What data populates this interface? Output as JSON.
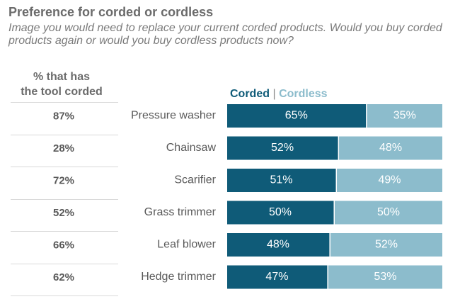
{
  "header": {
    "title": "Preference for corded or cordless",
    "subtitle": "Image you would need to replace your current corded products. Would you buy corded products again or would you buy cordless products now?"
  },
  "owned_column": {
    "header_line1": "% that has",
    "header_line2": "the tool corded"
  },
  "legend": {
    "corded": "Corded",
    "separator": "|",
    "cordless": "Cordless"
  },
  "colors": {
    "corded": "#0f5b78",
    "cordless": "#8cbccc",
    "text": "#595959",
    "divider": "#d9d9d9"
  },
  "chart_data": {
    "type": "bar",
    "orientation": "horizontal",
    "stacked": true,
    "percent_stacked": true,
    "title": "Preference for corded or cordless",
    "categories": [
      "Pressure washer",
      "Chainsaw",
      "Scarifier",
      "Grass trimmer",
      "Leaf blower",
      "Hedge trimmer"
    ],
    "series": [
      {
        "name": "Corded",
        "values": [
          65,
          52,
          51,
          50,
          48,
          47
        ],
        "labels": [
          "65%",
          "52%",
          "51%",
          "50%",
          "48%",
          "47%"
        ]
      },
      {
        "name": "Cordless",
        "values": [
          35,
          48,
          49,
          50,
          52,
          53
        ],
        "labels": [
          "35%",
          "48%",
          "49%",
          "50%",
          "52%",
          "53%"
        ]
      }
    ],
    "owned_corded": {
      "header": "% that has the tool corded",
      "values": [
        87,
        28,
        72,
        52,
        66,
        62
      ],
      "labels": [
        "87%",
        "28%",
        "72%",
        "52%",
        "66%",
        "62%"
      ]
    },
    "xlim": [
      0,
      100
    ],
    "legend_position": "top"
  }
}
